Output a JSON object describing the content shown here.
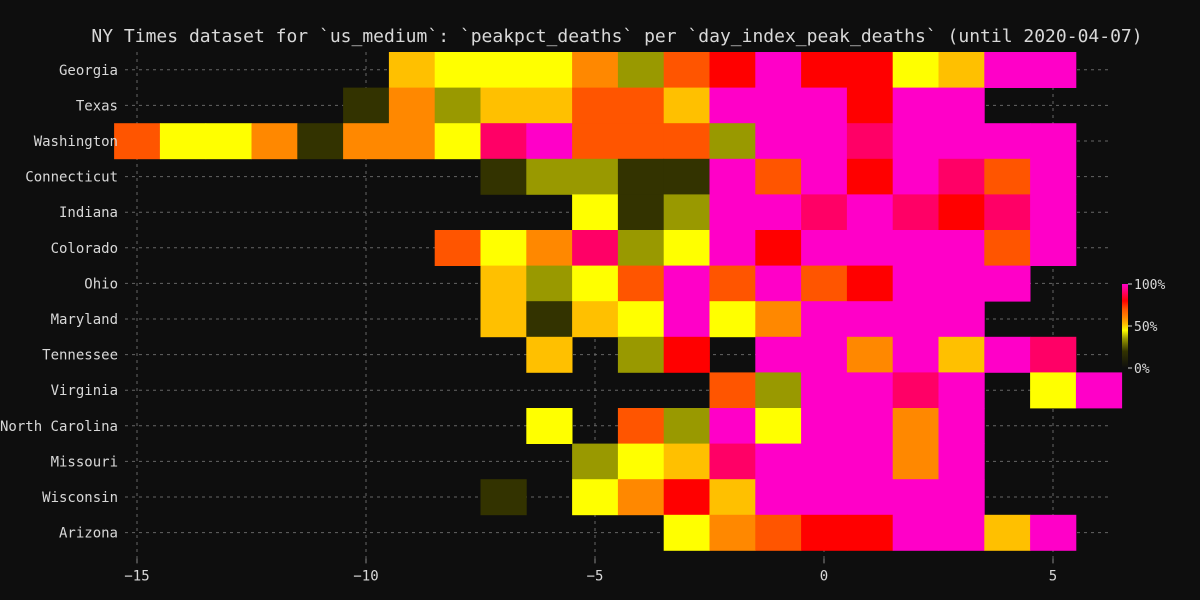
{
  "chart_data": {
    "type": "heatmap",
    "title": "NY Times dataset for `us_medium`: `peakpct_deaths` per `day_index_peak_deaths` (until 2020-04-07)",
    "xlabel": "",
    "ylabel": "",
    "x_ticks": [
      -15,
      -10,
      -5,
      0,
      5
    ],
    "xlim": [
      -15.5,
      6.5
    ],
    "grid": true,
    "colorbar": {
      "ticks": [
        "100%",
        "50%",
        "0%"
      ],
      "colors": [
        "#ff00a6",
        "#ff0000",
        "#ff5500",
        "#ff8800",
        "#ffc000",
        "#ffff00",
        "#999900",
        "#333300",
        "#0e0e0e"
      ]
    },
    "rows": [
      "Georgia",
      "Texas",
      "Washington",
      "Connecticut",
      "Indiana",
      "Colorado",
      "Ohio",
      "Maryland",
      "Tennessee",
      "Virginia",
      "North Carolina",
      "Missouri",
      "Wisconsin",
      "Arizona"
    ],
    "series": [
      {
        "name": "Georgia",
        "x": [
          -9,
          -8,
          -7,
          -6,
          -5,
          -4,
          -3,
          -2,
          -1,
          0,
          1,
          2,
          3,
          4,
          5
        ],
        "values": [
          60,
          55,
          55,
          55,
          68,
          40,
          76,
          85,
          100,
          85,
          85,
          55,
          60,
          100,
          100
        ]
      },
      {
        "name": "Texas",
        "x": [
          -10,
          -9,
          -8,
          -7,
          -6,
          -5,
          -4,
          -3,
          -2,
          -1,
          0,
          1,
          2,
          3
        ],
        "values": [
          20,
          68,
          40,
          60,
          60,
          76,
          76,
          60,
          100,
          100,
          100,
          85,
          100,
          100
        ]
      },
      {
        "name": "Washington",
        "x": [
          -15,
          -14,
          -13,
          -12,
          -11,
          -10,
          -9,
          -8,
          -7,
          -6,
          -5,
          -4,
          -3,
          -2,
          -1,
          0,
          1,
          2,
          3,
          4,
          5
        ],
        "values": [
          76,
          55,
          55,
          68,
          20,
          68,
          68,
          55,
          92,
          100,
          76,
          76,
          76,
          40,
          100,
          100,
          92,
          100,
          100,
          100,
          100
        ]
      },
      {
        "name": "Connecticut",
        "x": [
          -7,
          -6,
          -5,
          -4,
          -3,
          -2,
          -1,
          0,
          1,
          2,
          3,
          4,
          5
        ],
        "values": [
          20,
          40,
          40,
          20,
          20,
          100,
          76,
          100,
          85,
          100,
          92,
          76,
          100
        ]
      },
      {
        "name": "Indiana",
        "x": [
          -5,
          -4,
          -3,
          -2,
          -1,
          0,
          1,
          2,
          3,
          4,
          5
        ],
        "values": [
          55,
          20,
          40,
          100,
          100,
          92,
          100,
          92,
          85,
          92,
          100
        ]
      },
      {
        "name": "Colorado",
        "x": [
          -8,
          -7,
          -6,
          -5,
          -4,
          -3,
          -2,
          -1,
          0,
          1,
          2,
          3,
          4,
          5
        ],
        "values": [
          76,
          55,
          68,
          92,
          40,
          55,
          100,
          85,
          100,
          100,
          100,
          100,
          76,
          100
        ]
      },
      {
        "name": "Ohio",
        "x": [
          -7,
          -6,
          -5,
          -4,
          -3,
          -2,
          -1,
          0,
          1,
          2,
          3,
          4
        ],
        "values": [
          60,
          40,
          55,
          76,
          100,
          76,
          100,
          76,
          85,
          100,
          100,
          100
        ]
      },
      {
        "name": "Maryland",
        "x": [
          -7,
          -6,
          -5,
          -4,
          -3,
          -2,
          -1,
          0,
          1,
          2,
          3
        ],
        "values": [
          60,
          20,
          60,
          55,
          100,
          55,
          68,
          100,
          100,
          100,
          100
        ]
      },
      {
        "name": "Tennessee",
        "x": [
          -6,
          -4,
          -3,
          -1,
          0,
          1,
          2,
          3,
          4,
          5
        ],
        "values": [
          60,
          40,
          85,
          100,
          100,
          68,
          100,
          60,
          100,
          92
        ]
      },
      {
        "name": "Virginia",
        "x": [
          -2,
          -1,
          0,
          1,
          2,
          3,
          5,
          6
        ],
        "values": [
          76,
          40,
          100,
          100,
          92,
          100,
          55,
          100
        ]
      },
      {
        "name": "North Carolina",
        "x": [
          -6,
          -4,
          -3,
          -2,
          -1,
          0,
          1,
          2,
          3
        ],
        "values": [
          55,
          76,
          40,
          100,
          55,
          100,
          100,
          68,
          100
        ]
      },
      {
        "name": "Missouri",
        "x": [
          -5,
          -4,
          -3,
          -2,
          -1,
          0,
          1,
          2,
          3
        ],
        "values": [
          40,
          55,
          60,
          92,
          100,
          100,
          100,
          68,
          100
        ]
      },
      {
        "name": "Wisconsin",
        "x": [
          -7,
          -5,
          -4,
          -3,
          -2,
          -1,
          0,
          1,
          2,
          3
        ],
        "values": [
          20,
          55,
          68,
          85,
          60,
          100,
          100,
          100,
          100,
          100
        ]
      },
      {
        "name": "Arizona",
        "x": [
          -3,
          -2,
          -1,
          0,
          1,
          2,
          3,
          4,
          5
        ],
        "values": [
          55,
          68,
          76,
          85,
          85,
          100,
          100,
          60,
          100
        ]
      }
    ]
  }
}
